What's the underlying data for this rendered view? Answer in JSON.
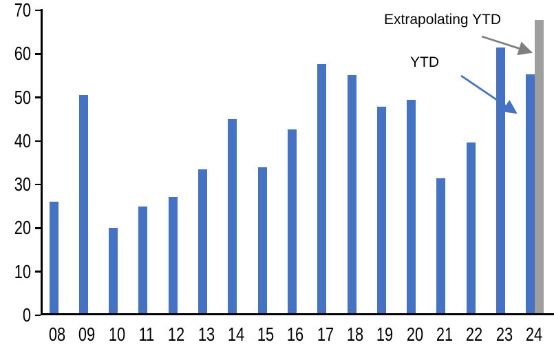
{
  "chart_data": {
    "type": "bar",
    "categories": [
      "08",
      "09",
      "10",
      "11",
      "12",
      "13",
      "14",
      "15",
      "16",
      "17",
      "18",
      "19",
      "20",
      "21",
      "22",
      "23",
      "24"
    ],
    "series": [
      {
        "name": "YTD",
        "color": "#4472C4",
        "values": [
          26,
          50.5,
          20,
          25,
          27.2,
          33.5,
          45,
          33.9,
          42.6,
          57.7,
          55.1,
          47.9,
          49.4,
          31.5,
          39.6,
          61.4,
          55.3
        ]
      },
      {
        "name": "Extrapolating YTD",
        "color": "#9E9E9E",
        "values": [
          null,
          null,
          null,
          null,
          null,
          null,
          null,
          null,
          null,
          null,
          null,
          null,
          null,
          null,
          null,
          null,
          67.8
        ]
      }
    ],
    "ylim": [
      0,
      70
    ],
    "y_ticks": [
      0,
      10,
      20,
      30,
      40,
      50,
      60,
      70
    ],
    "grid": false,
    "legend": "none",
    "axis_color": "#000000",
    "annotations": [
      {
        "label": "Extrapolating YTD",
        "arrow_color": "#7F7F7F",
        "target": "bar-24-extrapolated"
      },
      {
        "label": "YTD",
        "arrow_color": "#4472C4",
        "target": "bar-24"
      }
    ]
  }
}
